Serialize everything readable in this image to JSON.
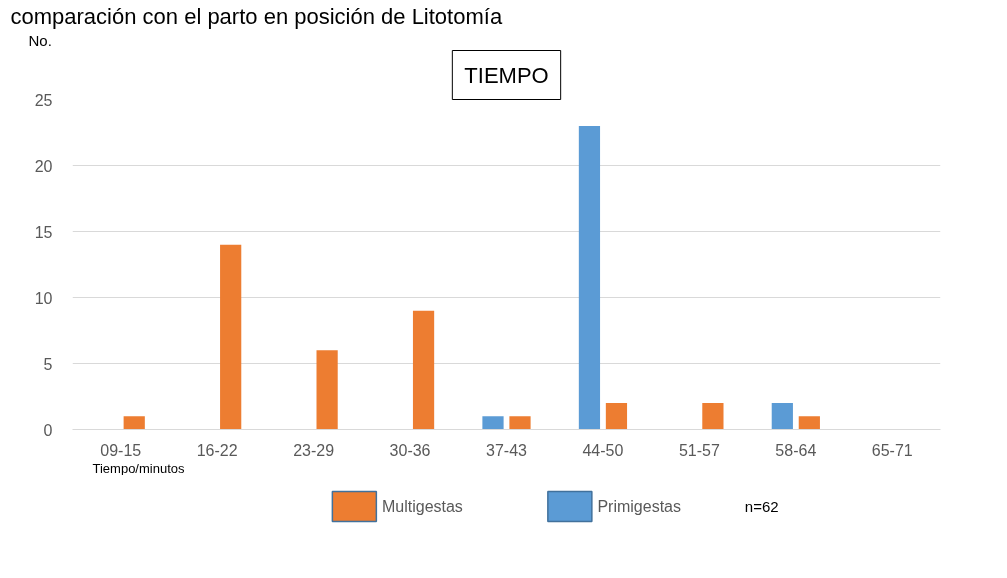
{
  "chart_data": {
    "type": "bar",
    "title": "comparación con el parto en posición de Litotomía",
    "subtitle": "TIEMPO",
    "xlabel": "Tiempo/minutos",
    "ylabel": "No.",
    "categories": [
      "09-15",
      "16-22",
      "23-29",
      "30-36",
      "37-43",
      "44-50",
      "51-57",
      "58-64",
      "65-71"
    ],
    "series": [
      {
        "name": "Primigestas",
        "color": "#5b9bd5",
        "values": [
          0,
          0,
          0,
          0,
          1,
          23,
          0,
          2,
          0
        ]
      },
      {
        "name": "Multigestas",
        "color": "#ed7d31",
        "values": [
          1,
          14,
          6,
          9,
          1,
          2,
          2,
          1,
          0
        ]
      }
    ],
    "ylim": [
      0,
      25
    ],
    "yticks": [
      0,
      5,
      10,
      15,
      20,
      25
    ],
    "grid": "y",
    "legend": "bottom",
    "annotations": [
      "n=62"
    ]
  }
}
